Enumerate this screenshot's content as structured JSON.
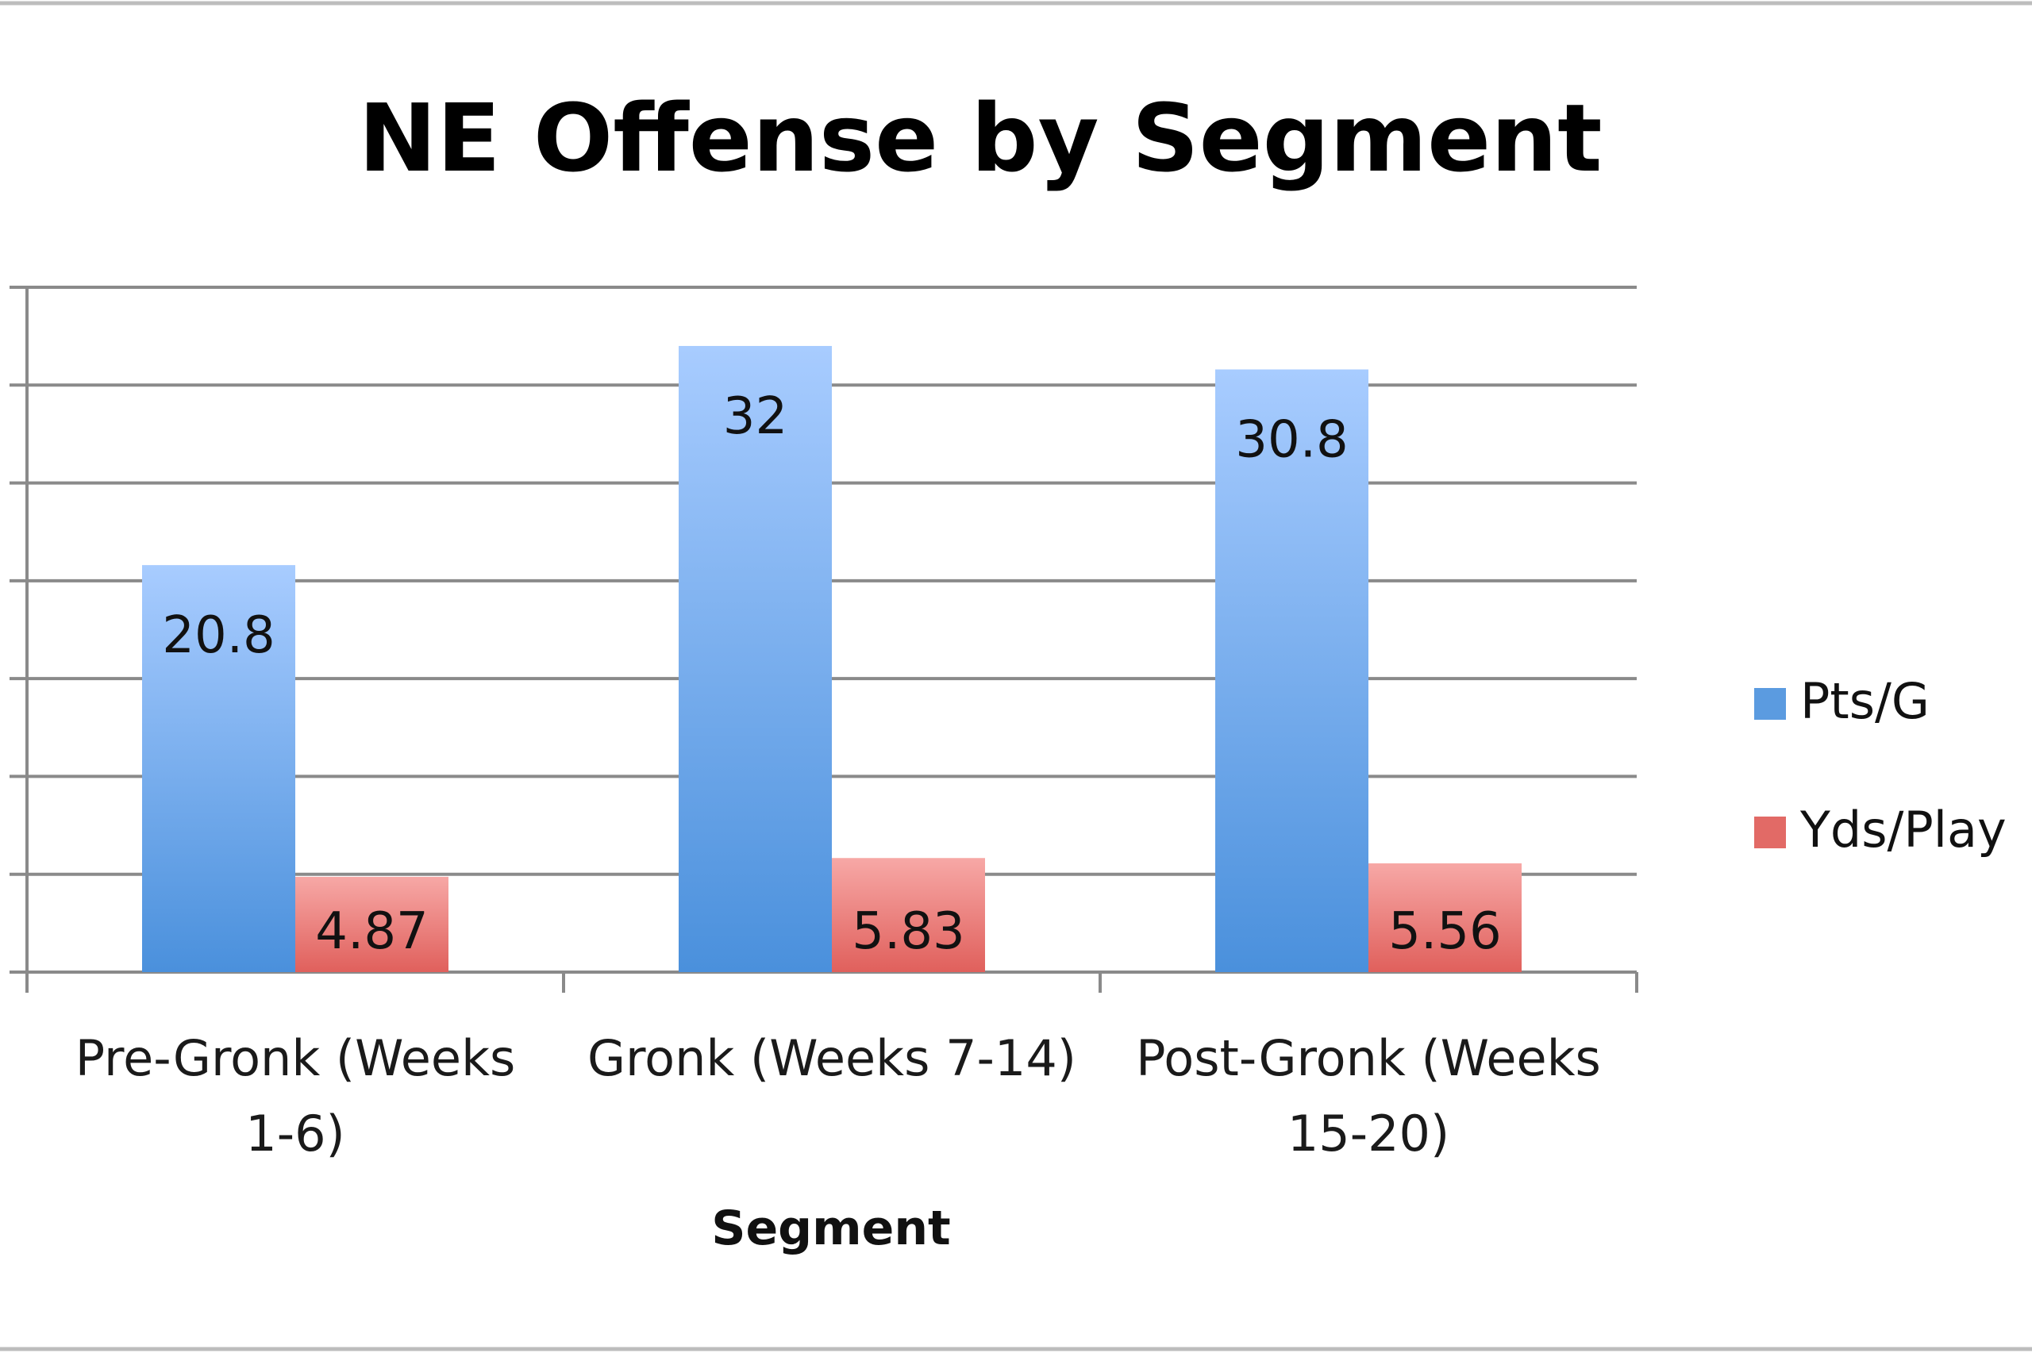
{
  "chart_data": {
    "type": "bar",
    "title": "NE Offense by Segment",
    "xlabel": "Segment",
    "ylabel": "",
    "categories": [
      [
        "Pre-Gronk (Weeks",
        "1-6)"
      ],
      [
        "Gronk (Weeks 7-14)"
      ],
      [
        "Post-Gronk (Weeks",
        "15-20)"
      ]
    ],
    "series": [
      {
        "name": "Pts/G",
        "values": [
          20.8,
          32,
          30.8
        ],
        "labels": [
          "20.8",
          "32",
          "30.8"
        ],
        "color_top": "#a8ccff",
        "color_bottom": "#4a90dc",
        "legend_color": "#5b9be0"
      },
      {
        "name": "Yds/Play",
        "values": [
          4.87,
          5.83,
          5.56
        ],
        "labels": [
          "4.87",
          "5.83",
          "5.56"
        ],
        "color_top": "#f7a8a6",
        "color_bottom": "#e0605c",
        "legend_color": "#e26a66"
      }
    ],
    "ylim": [
      0,
      35
    ],
    "y_grid_step": 5,
    "y_tick_labels_visible": false,
    "grid": true,
    "legend_position": "right",
    "gridline_color": "#8a8a8a",
    "frame_color": "#bdbdbd"
  }
}
